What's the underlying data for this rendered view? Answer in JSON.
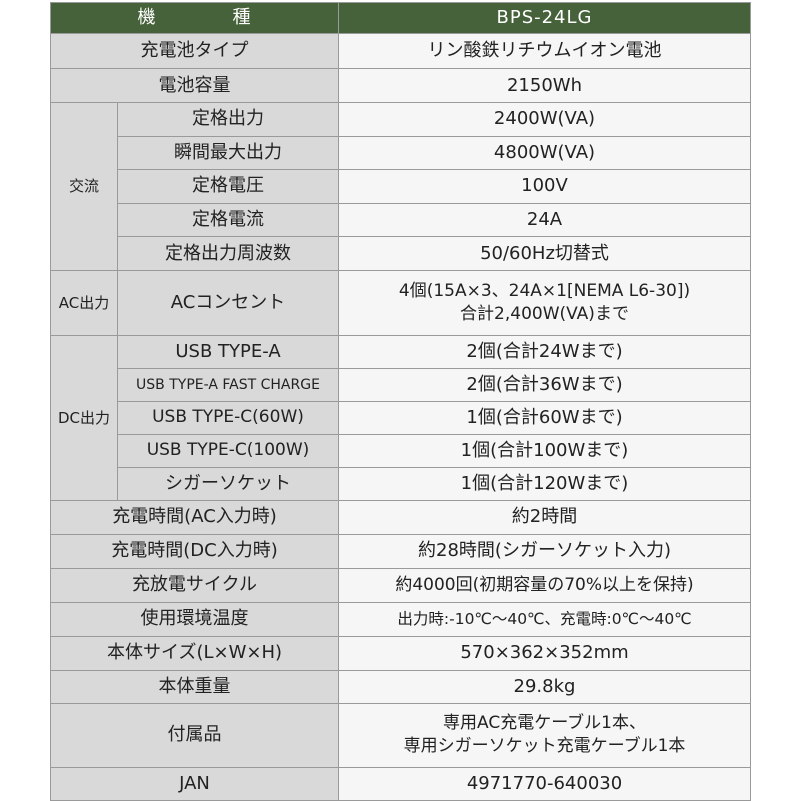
{
  "header": {
    "label": "機　　　　種",
    "value": "BPS-24LG"
  },
  "colors": {
    "header_bg": "#46623a",
    "label_bg": "#d9d9d9",
    "value_bg": "#f6f6f6"
  },
  "rows_top": [
    {
      "label": "充電池タイプ",
      "value": "リン酸鉄リチウムイオン電池"
    },
    {
      "label": "電池容量",
      "value": "2150Wh"
    }
  ],
  "ac": {
    "category": "交流",
    "rows": [
      {
        "label": "定格出力",
        "value": "2400W(VA)"
      },
      {
        "label": "瞬間最大出力",
        "value": "4800W(VA)"
      },
      {
        "label": "定格電圧",
        "value": "100V"
      },
      {
        "label": "定格電流",
        "value": "24A"
      },
      {
        "label": "定格出力周波数",
        "value": "50/60Hz切替式"
      }
    ]
  },
  "ac_out": {
    "category": "AC出力",
    "label": "ACコンセント",
    "value_line1": "4個(15A×3、24A×1[NEMA L6-30])",
    "value_line2": "合計2,400W(VA)まで"
  },
  "dc": {
    "category": "DC出力",
    "rows": [
      {
        "label": "USB TYPE-A",
        "value": "2個(合計24Wまで)"
      },
      {
        "label": "USB TYPE-A FAST CHARGE",
        "value": "2個(合計36Wまで)"
      },
      {
        "label": "USB TYPE-C(60W)",
        "value": "1個(合計60Wまで)"
      },
      {
        "label": "USB TYPE-C(100W)",
        "value": "1個(合計100Wまで)"
      },
      {
        "label": "シガーソケット",
        "value": "1個(合計120Wまで)"
      }
    ]
  },
  "rows_bottom": [
    {
      "label": "充電時間(AC入力時)",
      "value": "約2時間"
    },
    {
      "label": "充電時間(DC入力時)",
      "value": "約28時間(シガーソケット入力)"
    },
    {
      "label": "充放電サイクル",
      "value": "約4000回(初期容量の70%以上を保持)"
    },
    {
      "label": "使用環境温度",
      "value": "出力時:-10℃～40℃、充電時:0℃～40℃"
    },
    {
      "label": "本体サイズ(L×W×H)",
      "value": "570×362×352mm"
    },
    {
      "label": "本体重量",
      "value": "29.8kg"
    }
  ],
  "accessories": {
    "label": "付属品",
    "value_line1": "専用AC充電ケーブル1本、",
    "value_line2": "専用シガーソケット充電ケーブル1本"
  },
  "jan": {
    "label": "JAN",
    "value": "4971770-640030"
  }
}
